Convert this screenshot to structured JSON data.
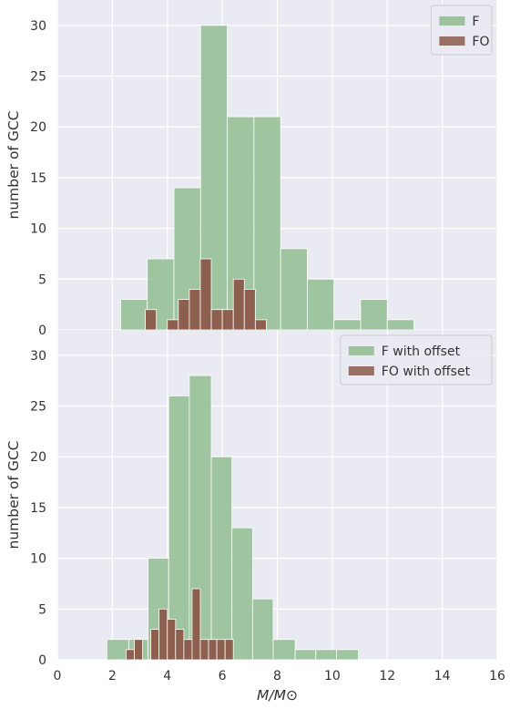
{
  "chart_data": [
    {
      "type": "bar",
      "xlim": [
        0,
        16
      ],
      "ylim": [
        0,
        32.5
      ],
      "yticks": [
        0,
        5,
        10,
        15,
        20,
        25,
        30
      ],
      "xticks": [
        0,
        2,
        4,
        6,
        8,
        10,
        12,
        14,
        16
      ],
      "show_xtick_labels": false,
      "ylabel": "number of GCC",
      "xlabel": "",
      "grid": true,
      "legend_position": "top-right",
      "series": [
        {
          "name": "F",
          "color": "#8fbc8f",
          "bin_edges": [
            2.3,
            3.27,
            4.24,
            5.21,
            6.18,
            7.15,
            8.12,
            9.09,
            10.06,
            11.03,
            12.0,
            12.97
          ],
          "values": [
            3,
            7,
            14,
            30,
            21,
            21,
            8,
            5,
            1,
            3,
            1
          ]
        },
        {
          "name": "FO",
          "color": "#8b5a4a",
          "bin_edges": [
            3.2,
            3.6,
            4.0,
            4.4,
            4.8,
            5.2,
            5.6,
            6.0,
            6.4,
            6.8,
            7.2,
            7.6
          ],
          "values": [
            2,
            0,
            1,
            3,
            4,
            7,
            2,
            2,
            5,
            4,
            1
          ]
        }
      ]
    },
    {
      "type": "bar",
      "xlim": [
        0,
        16
      ],
      "ylim": [
        0,
        32.5
      ],
      "yticks": [
        0,
        5,
        10,
        15,
        20,
        25,
        30
      ],
      "xticks": [
        0,
        2,
        4,
        6,
        8,
        10,
        12,
        14,
        16
      ],
      "show_xtick_labels": true,
      "ylabel": "number of GCC",
      "xlabel": "M/M⊙",
      "grid": true,
      "legend_position": "top-right",
      "series": [
        {
          "name": "F with offset",
          "color": "#8fbc8f",
          "bin_edges": [
            1.8,
            2.6,
            3.3,
            4.05,
            4.8,
            5.6,
            6.35,
            7.1,
            7.85,
            8.65,
            9.4,
            10.15,
            10.95,
            11.8
          ],
          "values": [
            2,
            2,
            10,
            26,
            28,
            20,
            13,
            6,
            2,
            1,
            1,
            1,
            0
          ]
        },
        {
          "name": "FO with offset",
          "color": "#8b5a4a",
          "bin_edges": [
            2.5,
            2.8,
            3.1,
            3.4,
            3.7,
            4.0,
            4.3,
            4.6,
            4.9,
            5.2,
            5.5,
            5.8,
            6.1,
            6.4
          ],
          "values": [
            1,
            2,
            0,
            3,
            5,
            4,
            3,
            2,
            7,
            2,
            2,
            2,
            2
          ]
        }
      ]
    }
  ]
}
